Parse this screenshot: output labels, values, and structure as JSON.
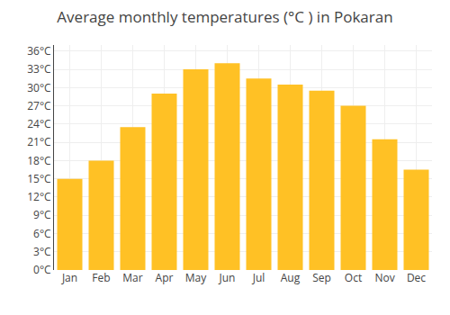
{
  "chart_data": {
    "type": "bar",
    "title": "Average monthly temperatures (°C ) in Pokaran",
    "categories": [
      "Jan",
      "Feb",
      "Mar",
      "Apr",
      "May",
      "Jun",
      "Jul",
      "Aug",
      "Sep",
      "Oct",
      "Nov",
      "Dec"
    ],
    "values": [
      15,
      18,
      23.5,
      29,
      33,
      34,
      31.5,
      30.5,
      29.5,
      27,
      21.5,
      16.5
    ],
    "color": "#FFC125",
    "ylim": [
      0,
      37
    ],
    "yticks": [
      {
        "value": 0,
        "label": "0°C"
      },
      {
        "value": 3,
        "label": "3°C"
      },
      {
        "value": 6,
        "label": "6°C"
      },
      {
        "value": 9,
        "label": "9°C"
      },
      {
        "value": 12,
        "label": "12°C"
      },
      {
        "value": 15,
        "label": "15°C"
      },
      {
        "value": 18,
        "label": "18°C"
      },
      {
        "value": 21,
        "label": "21°C"
      },
      {
        "value": 24,
        "label": "24°C"
      },
      {
        "value": 27,
        "label": "27°C"
      },
      {
        "value": 30,
        "label": "30°C"
      },
      {
        "value": 33,
        "label": "33°C"
      },
      {
        "value": 36,
        "label": "36°C"
      }
    ],
    "grid": true
  }
}
